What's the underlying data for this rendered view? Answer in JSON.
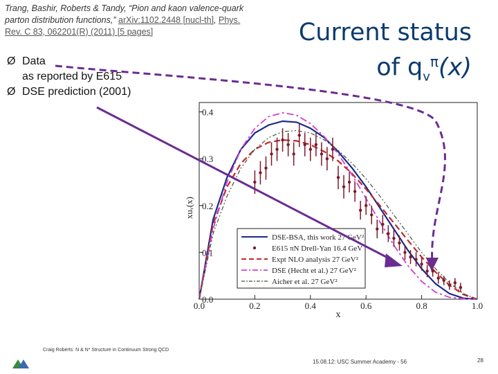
{
  "reference": {
    "authors_title": "Trang, Bashir, Roberts & Tandy, “Pion and kaon valence-quark parton distribution functions,”",
    "arxiv": "arXiv:1102.2448 [nucl-th]",
    "separator": ", ",
    "journal": "Phys. Rev. C 83, 062201(R) (2011) [5 pages]"
  },
  "slide_title": {
    "line1": "Current status",
    "line2_prefix": "of q",
    "line2_sub": "v",
    "line2_sup": "π",
    "line2_suffix": "(x)"
  },
  "bullets": [
    {
      "marker": "Ø",
      "lines": [
        "Data",
        "as reported by E615"
      ]
    },
    {
      "marker": "Ø",
      "lines": [
        "DSE prediction (2001)"
      ]
    }
  ],
  "footer_left": "Craig Roberts: N & N* Structure in Continuum Strong QCD",
  "footer_right": "15.08.12: USC Summer Academy - 56",
  "page_number": "28",
  "colors": {
    "title": "#0b3a6e",
    "arrow": "#6a2c91",
    "dse_bsa": "#1a2a8a",
    "e615": "#7a1a2a",
    "nlo": "#c0282a",
    "hecht": "#d040d0",
    "aicher": "#3a5a3a"
  },
  "chart_data": {
    "type": "line",
    "xlabel": "x",
    "ylabel": "xuᵥ(x)",
    "xlim": [
      0,
      1
    ],
    "ylim": [
      0,
      0.42
    ],
    "xticks": [
      "0.0",
      "0.2",
      "0.4",
      "0.6",
      "0.8",
      "1.0"
    ],
    "yticks": [
      "0.0",
      "0.1",
      "0.2",
      "0.3",
      "0.4"
    ],
    "legend": {
      "placement": "bottom-right",
      "entries": [
        "DSE-BSA, this work 27 GeV²",
        "E615 πN Drell-Yan 16.4 GeV",
        "Expt NLO analysis 27 GeV²",
        "DSE (Hecht et al.) 27 GeV²",
        "Aicher et al. 27 GeV²"
      ]
    },
    "series": [
      {
        "name": "DSE-BSA, this work 27 GeV²",
        "style": "solid",
        "x": [
          0,
          0.05,
          0.1,
          0.15,
          0.2,
          0.25,
          0.3,
          0.35,
          0.4,
          0.45,
          0.5,
          0.55,
          0.6,
          0.65,
          0.7,
          0.75,
          0.8,
          0.85,
          0.9,
          0.95,
          1.0
        ],
        "y": [
          0,
          0.17,
          0.26,
          0.32,
          0.355,
          0.372,
          0.38,
          0.378,
          0.365,
          0.345,
          0.315,
          0.28,
          0.24,
          0.195,
          0.15,
          0.105,
          0.065,
          0.033,
          0.012,
          0.002,
          0
        ]
      },
      {
        "name": "Expt NLO analysis 27 GeV²",
        "style": "dashed",
        "x": [
          0,
          0.05,
          0.1,
          0.15,
          0.2,
          0.25,
          0.3,
          0.35,
          0.4,
          0.45,
          0.5,
          0.55,
          0.6,
          0.65,
          0.7,
          0.75,
          0.8,
          0.85,
          0.9,
          0.95,
          1.0
        ],
        "y": [
          0,
          0.16,
          0.24,
          0.29,
          0.32,
          0.335,
          0.34,
          0.338,
          0.33,
          0.315,
          0.295,
          0.268,
          0.235,
          0.2,
          0.163,
          0.126,
          0.09,
          0.058,
          0.03,
          0.01,
          0
        ]
      },
      {
        "name": "DSE (Hecht et al.) 27 GeV²",
        "style": "dashdot",
        "x": [
          0,
          0.05,
          0.1,
          0.15,
          0.2,
          0.25,
          0.3,
          0.35,
          0.4,
          0.45,
          0.5,
          0.55,
          0.6,
          0.65,
          0.7,
          0.75,
          0.8,
          0.85,
          0.9,
          0.95,
          1.0
        ],
        "y": [
          0,
          0.15,
          0.25,
          0.32,
          0.365,
          0.39,
          0.398,
          0.393,
          0.375,
          0.347,
          0.31,
          0.265,
          0.215,
          0.165,
          0.115,
          0.072,
          0.038,
          0.015,
          0.004,
          0.001,
          0
        ]
      },
      {
        "name": "Aicher et al. 27 GeV²",
        "style": "dashdotdot",
        "x": [
          0,
          0.05,
          0.1,
          0.15,
          0.2,
          0.25,
          0.3,
          0.35,
          0.4,
          0.45,
          0.5,
          0.55,
          0.6,
          0.65,
          0.7,
          0.75,
          0.8,
          0.85,
          0.9,
          0.95,
          1.0
        ],
        "y": [
          0,
          0.14,
          0.22,
          0.28,
          0.32,
          0.345,
          0.358,
          0.36,
          0.355,
          0.34,
          0.318,
          0.29,
          0.257,
          0.22,
          0.18,
          0.14,
          0.1,
          0.065,
          0.035,
          0.012,
          0
        ]
      },
      {
        "name": "E615 πN Drell-Yan 16.4 GeV",
        "style": "points",
        "x": [
          0.2,
          0.22,
          0.24,
          0.26,
          0.28,
          0.3,
          0.32,
          0.34,
          0.36,
          0.38,
          0.4,
          0.42,
          0.44,
          0.46,
          0.48,
          0.5,
          0.52,
          0.54,
          0.56,
          0.58,
          0.6,
          0.62,
          0.64,
          0.66,
          0.68,
          0.7,
          0.72,
          0.74,
          0.76,
          0.78,
          0.8,
          0.82,
          0.84,
          0.86,
          0.88,
          0.9,
          0.92,
          0.94
        ],
        "y": [
          0.25,
          0.27,
          0.28,
          0.31,
          0.32,
          0.34,
          0.33,
          0.31,
          0.35,
          0.33,
          0.32,
          0.33,
          0.31,
          0.3,
          0.32,
          0.26,
          0.24,
          0.25,
          0.23,
          0.19,
          0.2,
          0.18,
          0.15,
          0.16,
          0.14,
          0.13,
          0.12,
          0.1,
          0.09,
          0.085,
          0.075,
          0.06,
          0.06,
          0.045,
          0.04,
          0.03,
          0.035,
          0.025
        ],
        "err": [
          0.025,
          0.025,
          0.025,
          0.025,
          0.025,
          0.025,
          0.025,
          0.025,
          0.025,
          0.025,
          0.025,
          0.025,
          0.025,
          0.025,
          0.025,
          0.025,
          0.025,
          0.022,
          0.022,
          0.02,
          0.02,
          0.02,
          0.02,
          0.02,
          0.018,
          0.018,
          0.016,
          0.016,
          0.015,
          0.015,
          0.014,
          0.013,
          0.012,
          0.012,
          0.01,
          0.01,
          0.01,
          0.01
        ]
      }
    ]
  }
}
